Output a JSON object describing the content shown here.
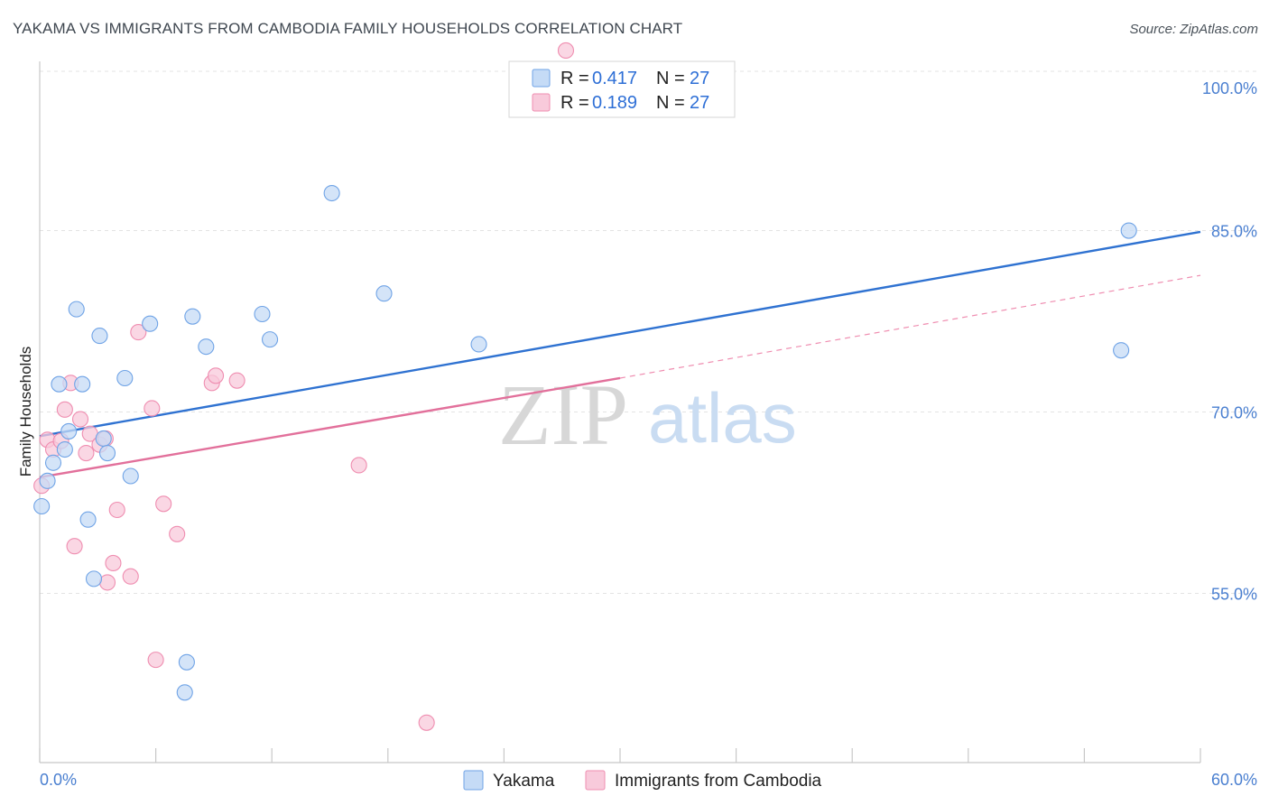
{
  "title": "YAKAMA VS IMMIGRANTS FROM CAMBODIA FAMILY HOUSEHOLDS CORRELATION CHART",
  "source": "Source: ZipAtlas.com",
  "watermark": {
    "zip": "ZIP",
    "atlas": "atlas"
  },
  "legend_top": [
    {
      "r_label": "R =",
      "r": "0.417",
      "n_label": "N =",
      "n": "27"
    },
    {
      "r_label": "R =",
      "r": "0.189",
      "n_label": "N =",
      "n": "27"
    }
  ],
  "chart_data": {
    "type": "scatter",
    "title": "YAKAMA VS IMMIGRANTS FROM CAMBODIA FAMILY HOUSEHOLDS CORRELATION CHART",
    "xlabel": "",
    "ylabel": "Family Households",
    "xlim": [
      0,
      60
    ],
    "ylim": [
      41,
      99
    ],
    "x_tick_labels": [
      "0.0%",
      "60.0%"
    ],
    "y_ticks": [
      55,
      70,
      85,
      100
    ],
    "y_tick_labels": [
      "55.0%",
      "70.0%",
      "85.0%",
      "100.0%"
    ],
    "grid": true,
    "legend_position": "bottom-center",
    "series": [
      {
        "name": "Yakama",
        "color": "#6fa3e6",
        "fill": "#c5dbf6",
        "r": 0.417,
        "n": 27,
        "trend": {
          "x0": 0,
          "y0": 68.0,
          "x1": 60,
          "y1": 84.9
        },
        "points": [
          [
            0.1,
            62.2
          ],
          [
            0.4,
            64.3
          ],
          [
            0.7,
            65.8
          ],
          [
            1.0,
            72.3
          ],
          [
            1.3,
            66.9
          ],
          [
            1.5,
            68.4
          ],
          [
            1.9,
            78.5
          ],
          [
            2.2,
            72.3
          ],
          [
            2.5,
            61.1
          ],
          [
            2.8,
            56.2
          ],
          [
            3.1,
            76.3
          ],
          [
            3.3,
            67.8
          ],
          [
            3.5,
            66.6
          ],
          [
            4.4,
            72.8
          ],
          [
            4.7,
            64.7
          ],
          [
            5.7,
            77.3
          ],
          [
            7.5,
            46.8
          ],
          [
            7.6,
            49.3
          ],
          [
            7.9,
            77.9
          ],
          [
            8.6,
            75.4
          ],
          [
            11.5,
            78.1
          ],
          [
            11.9,
            76.0
          ],
          [
            15.1,
            88.1
          ],
          [
            17.8,
            79.8
          ],
          [
            22.7,
            75.6
          ],
          [
            55.9,
            75.1
          ],
          [
            56.3,
            85.0
          ]
        ]
      },
      {
        "name": "Immigrants from Cambodia",
        "color": "#ef8db0",
        "fill": "#f8cadb",
        "r": 0.189,
        "n": 27,
        "trend": {
          "x0": 0,
          "y0": 64.6,
          "x1": 30,
          "y1": 72.8
        },
        "trend_dashed": {
          "x0": 30,
          "y0": 72.8,
          "x1": 60,
          "y1": 81.3
        },
        "points": [
          [
            0.1,
            63.9
          ],
          [
            0.4,
            67.7
          ],
          [
            0.7,
            66.9
          ],
          [
            1.1,
            67.6
          ],
          [
            1.3,
            70.2
          ],
          [
            1.6,
            72.4
          ],
          [
            1.8,
            58.9
          ],
          [
            2.1,
            69.4
          ],
          [
            2.4,
            66.6
          ],
          [
            2.6,
            68.2
          ],
          [
            3.1,
            67.3
          ],
          [
            3.4,
            67.8
          ],
          [
            3.5,
            55.9
          ],
          [
            3.8,
            57.5
          ],
          [
            4.0,
            61.9
          ],
          [
            4.7,
            56.4
          ],
          [
            5.1,
            76.6
          ],
          [
            5.8,
            70.3
          ],
          [
            6.0,
            49.5
          ],
          [
            6.4,
            62.4
          ],
          [
            7.1,
            59.9
          ],
          [
            8.9,
            72.4
          ],
          [
            9.1,
            73.0
          ],
          [
            10.2,
            72.6
          ],
          [
            16.5,
            65.6
          ],
          [
            20.0,
            44.3
          ],
          [
            27.2,
            99.9
          ]
        ]
      }
    ]
  }
}
